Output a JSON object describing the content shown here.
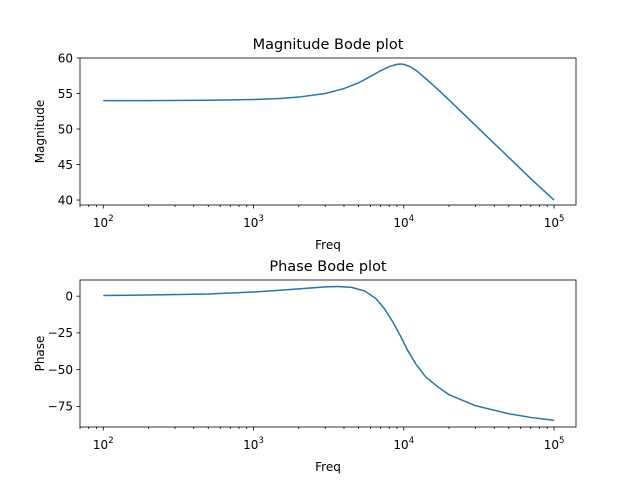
{
  "chart_data": [
    {
      "type": "line",
      "title": "Magnitude Bode plot",
      "xlabel": "Freq",
      "ylabel": "Magnitude",
      "xscale": "log",
      "xlim": [
        70,
        140000
      ],
      "ylim": [
        39.3,
        60
      ],
      "xticks": [
        {
          "base": "10",
          "exp": "2",
          "value": 100
        },
        {
          "base": "10",
          "exp": "3",
          "value": 1000
        },
        {
          "base": "10",
          "exp": "4",
          "value": 10000
        },
        {
          "base": "10",
          "exp": "5",
          "value": 100000
        }
      ],
      "yticks": [
        {
          "label": "40",
          "value": 40
        },
        {
          "label": "45",
          "value": 45
        },
        {
          "label": "50",
          "value": 50
        },
        {
          "label": "55",
          "value": 55
        },
        {
          "label": "60",
          "value": 60
        }
      ],
      "grid": false,
      "series": [
        {
          "color": "#1f77b4",
          "x": [
            100,
            200,
            500,
            1000,
            1500,
            2000,
            3000,
            4000,
            5000,
            6000,
            7000,
            8000,
            9000,
            9500,
            10000,
            11000,
            12000,
            14000,
            17000,
            20000,
            30000,
            50000,
            70000,
            100000
          ],
          "y": [
            54.0,
            54.0,
            54.05,
            54.15,
            54.3,
            54.5,
            55.0,
            55.7,
            56.5,
            57.4,
            58.2,
            58.8,
            59.1,
            59.15,
            59.1,
            58.8,
            58.3,
            57.1,
            55.5,
            54.1,
            50.5,
            46.0,
            43.0,
            40.0
          ]
        }
      ]
    },
    {
      "type": "line",
      "title": "Phase Bode plot",
      "xlabel": "Freq",
      "ylabel": "Phase",
      "xscale": "log",
      "xlim": [
        70,
        140000
      ],
      "ylim": [
        -89,
        11
      ],
      "xticks": [
        {
          "base": "10",
          "exp": "2",
          "value": 100
        },
        {
          "base": "10",
          "exp": "3",
          "value": 1000
        },
        {
          "base": "10",
          "exp": "4",
          "value": 10000
        },
        {
          "base": "10",
          "exp": "5",
          "value": 100000
        }
      ],
      "yticks": [
        {
          "label": "0",
          "value": 0
        },
        {
          "label": "−25",
          "value": -25
        },
        {
          "label": "−50",
          "value": -50
        },
        {
          "label": "−75",
          "value": -75
        }
      ],
      "grid": false,
      "series": [
        {
          "color": "#1f77b4",
          "x": [
            100,
            200,
            500,
            1000,
            1500,
            2000,
            3000,
            3600,
            4500,
            5500,
            6500,
            7500,
            8500,
            9500,
            10500,
            12000,
            14000,
            17000,
            20000,
            30000,
            50000,
            70000,
            100000
          ],
          "y": [
            0.5,
            0.8,
            1.5,
            2.8,
            4.0,
            5.0,
            6.3,
            6.6,
            6.0,
            3.5,
            -1.5,
            -9.0,
            -18.0,
            -27.0,
            -36.0,
            -46.0,
            -55.0,
            -62.0,
            -67.0,
            -74.5,
            -80.0,
            -82.5,
            -84.5
          ]
        }
      ]
    }
  ]
}
